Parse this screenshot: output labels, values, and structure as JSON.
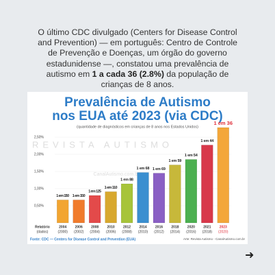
{
  "intro": {
    "before": "O último CDC divulgado (Centers for Disease Control and Prevention) — em português: Centro de Controle de Prevenção e Doenças, um órgão do governo estadunidense —, constatou uma prevalência de autismo em",
    "highlight": "1 a cada 36 (2.8%)",
    "after": "da população de crianças de 8 anos."
  },
  "chart_data": {
    "type": "bar",
    "title": "Prevalência de Autismo",
    "title_line2": "nos EUA até 2023 (via CDC)",
    "subtitle": "(quantidade de diagnósticos em crianças de 8 anos nos Estados Unidos)",
    "row_label": "Relatório",
    "row_label2": "(dados)",
    "categories": [
      "2004",
      "2006",
      "2008",
      "2010",
      "2012",
      "2014",
      "2016",
      "2018",
      "2020",
      "2021",
      "2023"
    ],
    "data_years": [
      "(2000)",
      "(2002)",
      "(2004)",
      "(2006)",
      "(2008)",
      "(2010)",
      "(2012)",
      "(2014)",
      "(2016)",
      "(2018)",
      "(2020)"
    ],
    "values": [
      0.67,
      0.67,
      0.8,
      0.91,
      1.14,
      1.47,
      1.45,
      1.69,
      1.85,
      2.27,
      2.78
    ],
    "value_labels": [
      "1 em 150",
      "1 em 150",
      "1 em 125",
      "1 em 110",
      "1 em 88",
      "1 em 68",
      "1 em 69",
      "1 em 59",
      "1 em 54",
      "1 em 44",
      "1 em 36"
    ],
    "colors": [
      "#f2a531",
      "#f07b2c",
      "#e34a4a",
      "#d8a82e",
      "#a7c43a",
      "#3b8fd0",
      "#8a5fc4",
      "#c7b83a",
      "#4cb050",
      "#d8384a",
      "#f3a73a"
    ],
    "ylim": [
      0,
      2.9
    ],
    "yticks": [
      {
        "value": 0.5,
        "label": "0,50%"
      },
      {
        "value": 1,
        "label": "1,00%"
      },
      {
        "value": 1.5,
        "label": "1,50%"
      },
      {
        "value": 2,
        "label": "2,00%"
      },
      {
        "value": 2.5,
        "label": "2,50%"
      }
    ],
    "watermark": "REVISTA AUTISMO",
    "watermark2": "CanalAutismo.com.br",
    "source": "Fonte: CDC — Centers for Disease Control and Prevention (EUA)",
    "credit": "Arte: Revista Autismo - CanalAutismo.com.br"
  }
}
